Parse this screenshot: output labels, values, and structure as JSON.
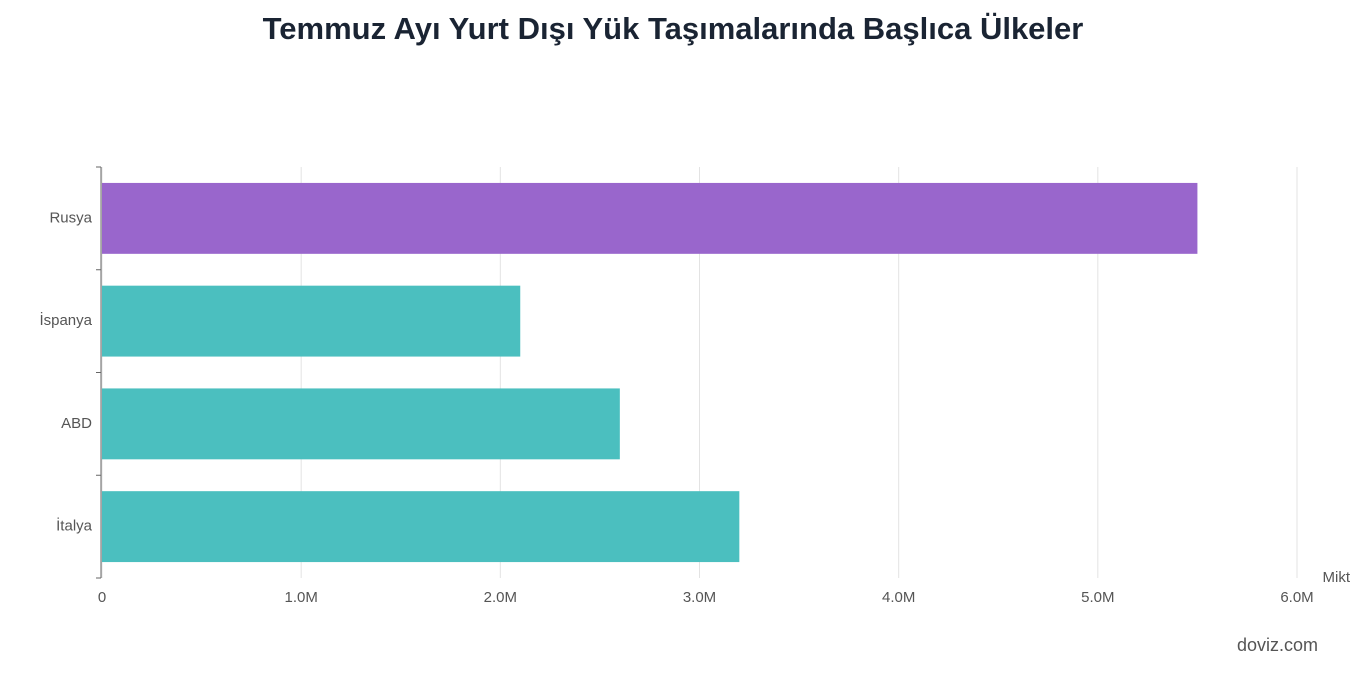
{
  "chart_data": {
    "type": "bar",
    "orientation": "horizontal",
    "title": "Temmuz Ayı Yurt Dışı Yük Taşımalarında Başlıca Ülkeler",
    "categories": [
      "Rusya",
      "İspanya",
      "ABD",
      "İtalya"
    ],
    "values": [
      5500000,
      2100000,
      2600000,
      3200000
    ],
    "colors": [
      "#9966cc",
      "#4bbfbf",
      "#4bbfbf",
      "#4bbfbf"
    ],
    "xlabel": "Mikt",
    "xlim": [
      0,
      6000000
    ],
    "xticks": [
      0,
      {
        "value": 1000000,
        "label": "1.0M"
      },
      {
        "value": 2000000,
        "label": "2.0M"
      },
      {
        "value": 3000000,
        "label": "3.0M"
      },
      {
        "value": 4000000,
        "label": "4.0M"
      },
      {
        "value": 5000000,
        "label": "5.0M"
      },
      {
        "value": 6000000,
        "label": "6.0M"
      }
    ],
    "grid": true,
    "source": "doviz.com"
  }
}
